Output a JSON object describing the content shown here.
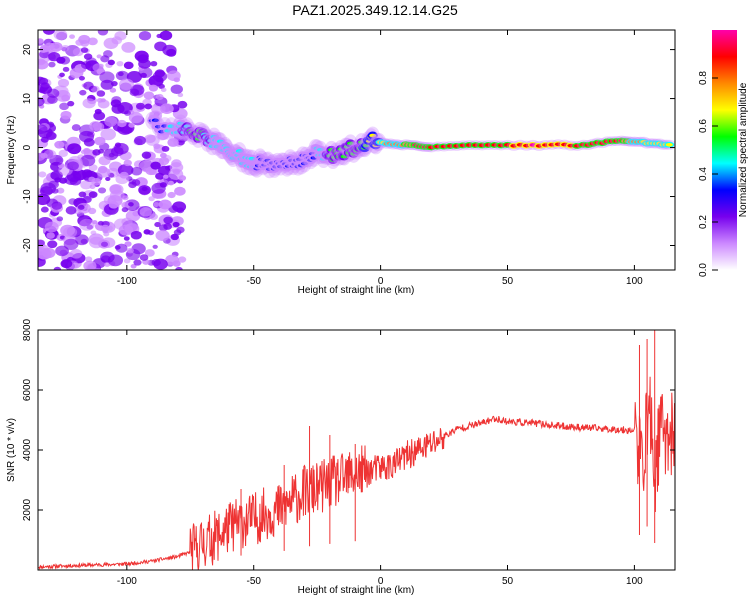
{
  "title": "PAZ1.2025.349.12.14.G25",
  "colors": {
    "snr_line": "#ee3333",
    "axis": "#000000",
    "background": "#ffffff"
  },
  "chart_data": [
    {
      "type": "heatmap",
      "name": "spectrogram",
      "title": "PAZ1.2025.349.12.14.G25",
      "xlabel": "Height of straight line (km)",
      "ylabel": "Frequency (Hz)",
      "xlim": [
        -135,
        116
      ],
      "ylim": [
        -25,
        24
      ],
      "xticks": [
        -100,
        -50,
        0,
        50,
        100
      ],
      "yticks": [
        -20,
        -10,
        0,
        10,
        20
      ],
      "colorbar": {
        "label": "Normalized spectral amplitude",
        "range": [
          0,
          1
        ],
        "ticks": [
          "0.0",
          "0.2",
          "0.4",
          "0.6",
          "0.8"
        ],
        "tick_values": [
          0.0,
          0.2,
          0.4,
          0.6,
          0.8
        ],
        "palette": [
          "#ffffff",
          "#cc88ff",
          "#7700ee",
          "#0000ff",
          "#00ffff",
          "#00ff00",
          "#ffff00",
          "#ff8800",
          "#ff0000",
          "#ff00aa"
        ]
      },
      "ridge": [
        {
          "x": -90,
          "y": 4.5,
          "a": 0.3
        },
        {
          "x": -80,
          "y": 4.0,
          "a": 0.45
        },
        {
          "x": -75,
          "y": 3.5,
          "a": 0.5
        },
        {
          "x": -70,
          "y": 2.5,
          "a": 0.5
        },
        {
          "x": -65,
          "y": 1.0,
          "a": 0.45
        },
        {
          "x": -60,
          "y": -0.5,
          "a": 0.4
        },
        {
          "x": -55,
          "y": -2.0,
          "a": 0.45
        },
        {
          "x": -50,
          "y": -3.0,
          "a": 0.4
        },
        {
          "x": -45,
          "y": -3.5,
          "a": 0.35
        },
        {
          "x": -40,
          "y": -4.0,
          "a": 0.35
        },
        {
          "x": -35,
          "y": -3.0,
          "a": 0.35
        },
        {
          "x": -30,
          "y": -2.5,
          "a": 0.35
        },
        {
          "x": -25,
          "y": -1.0,
          "a": 0.4
        },
        {
          "x": -20,
          "y": -1.5,
          "a": 0.5
        },
        {
          "x": -15,
          "y": -1.0,
          "a": 0.5
        },
        {
          "x": -10,
          "y": 0.0,
          "a": 0.55
        },
        {
          "x": -5,
          "y": 1.5,
          "a": 0.6
        },
        {
          "x": 0,
          "y": 1.0,
          "a": 0.7
        },
        {
          "x": 10,
          "y": 0.5,
          "a": 0.8
        },
        {
          "x": 20,
          "y": 0.0,
          "a": 0.9
        },
        {
          "x": 40,
          "y": 0.5,
          "a": 0.85
        },
        {
          "x": 60,
          "y": 0.5,
          "a": 0.95
        },
        {
          "x": 80,
          "y": 0.5,
          "a": 0.9
        },
        {
          "x": 95,
          "y": 1.5,
          "a": 0.85
        },
        {
          "x": 105,
          "y": 1.0,
          "a": 0.7
        },
        {
          "x": 115,
          "y": 0.5,
          "a": 0.7
        }
      ]
    },
    {
      "type": "line",
      "name": "snr",
      "xlabel": "Height of straight line (km)",
      "ylabel": "SNR (10 * v/v)",
      "xlim": [
        -135,
        116
      ],
      "ylim": [
        0,
        8000
      ],
      "xticks": [
        -100,
        -50,
        0,
        50,
        100
      ],
      "yticks": [
        2000,
        4000,
        6000,
        8000
      ],
      "series": [
        {
          "name": "SNR",
          "x": [
            -135,
            -120,
            -100,
            -90,
            -80,
            -75,
            -70,
            -65,
            -60,
            -55,
            -50,
            -45,
            -40,
            -35,
            -30,
            -25,
            -20,
            -15,
            -10,
            -5,
            0,
            5,
            10,
            20,
            30,
            40,
            45,
            50,
            60,
            70,
            80,
            90,
            100,
            103,
            106,
            108,
            110,
            116
          ],
          "values": [
            100,
            150,
            200,
            300,
            450,
            600,
            900,
            1100,
            1400,
            1600,
            1700,
            1900,
            2000,
            2300,
            2600,
            2700,
            2900,
            3000,
            3200,
            3300,
            3400,
            3500,
            3800,
            4200,
            4700,
            4900,
            5050,
            4950,
            4900,
            4800,
            4750,
            4700,
            4650,
            3500,
            5500,
            3000,
            4600,
            4500
          ],
          "spikes": [
            {
              "x": -55,
              "y": 2700
            },
            {
              "x": -38,
              "y": 3500
            },
            {
              "x": -28,
              "y": 4800
            },
            {
              "x": -20,
              "y": 4500
            },
            {
              "x": -10,
              "y": 4200
            },
            {
              "x": 102,
              "y": 7500
            },
            {
              "x": 105,
              "y": 7700
            },
            {
              "x": 108,
              "y": 8000
            }
          ]
        }
      ]
    }
  ]
}
